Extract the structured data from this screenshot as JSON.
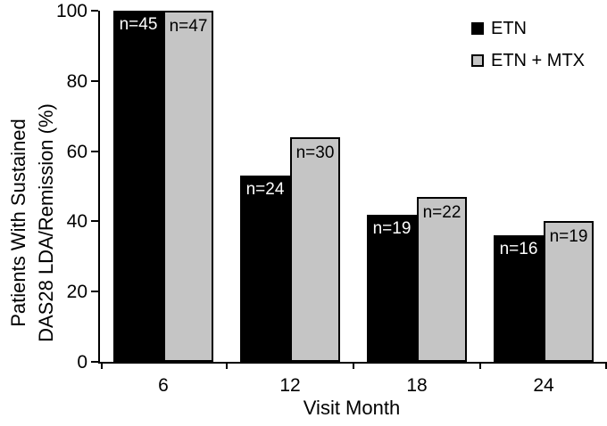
{
  "figure": {
    "background": "#ffffff",
    "axis_color": "#000000"
  },
  "chart_data": {
    "type": "bar",
    "title": "",
    "categories": [
      "6",
      "12",
      "18",
      "24"
    ],
    "series": [
      {
        "name": "ETN",
        "color": "#000000",
        "values": [
          100,
          53,
          42,
          36
        ],
        "bar_labels": [
          "n=45",
          "n=24",
          "n=19",
          "n=16"
        ],
        "bar_label_color": "#ffffff",
        "outlined": false
      },
      {
        "name": "ETN + MTX",
        "color": "#c5c5c5",
        "values": [
          100,
          64,
          47,
          40
        ],
        "bar_labels": [
          "n=47",
          "n=30",
          "n=22",
          "n=19"
        ],
        "bar_label_color": "#000000",
        "outlined": true
      }
    ],
    "xlabel": "Visit Month",
    "ylabel": "Patients With Sustained DAS28 LDA/Remission (%)",
    "ylabel_line1": "Patients With Sustained",
    "ylabel_line2": "DAS28 LDA/Remission (%)",
    "ylim": [
      0,
      100
    ],
    "yticks": [
      0,
      20,
      40,
      60,
      80,
      100
    ],
    "grid": false,
    "legend_position": "upper right",
    "bar_outline_color": "#000000"
  }
}
